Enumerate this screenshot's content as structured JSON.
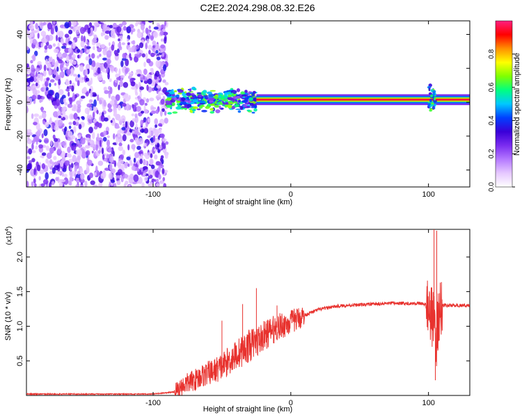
{
  "figure_title": "C2E2.2024.298.08.32.E26",
  "chart_data": [
    {
      "id": "spectrogram",
      "type": "heatmap",
      "xlabel": "Height of straight line (km)",
      "ylabel": "Frequency (Hz)",
      "xlim": [
        -192,
        130
      ],
      "ylim": [
        -50,
        48
      ],
      "x_ticks": [
        -100,
        0,
        100
      ],
      "y_ticks": [
        -40,
        -20,
        0,
        20,
        40
      ],
      "colorbar": {
        "label": "Normalized spectral amplitude",
        "range": [
          0,
          1
        ],
        "ticks": [
          "0.0",
          "0.2",
          "0.4",
          "0.6",
          "0.8"
        ],
        "colors": [
          "#ffffff",
          "#e6c8ff",
          "#b478ff",
          "#7a2cf0",
          "#3a00d8",
          "#0040ff",
          "#00c8ff",
          "#00ff80",
          "#80ff00",
          "#ffff00",
          "#ff9000",
          "#ff0000",
          "#ff2080"
        ]
      },
      "regions": [
        {
          "name": "noise",
          "x_range": [
            -192,
            -90
          ],
          "freq_range": [
            -50,
            48
          ],
          "amplitude": "low, scattered"
        },
        {
          "name": "transition",
          "x_range": [
            -90,
            -25
          ],
          "center_freq": 1,
          "freq_spread": 6,
          "amplitude": 0.45
        },
        {
          "name": "carrier",
          "x_range": [
            -25,
            130
          ],
          "center_freq": 1.5,
          "freq_spread": 3,
          "amplitude": 0.95
        },
        {
          "name": "disturbance",
          "x_range": [
            100,
            105
          ],
          "freq_range": [
            -5,
            10
          ],
          "amplitude": 0.5
        }
      ]
    },
    {
      "id": "snr",
      "type": "line",
      "xlabel": "Height of straight line (km)",
      "ylabel": "SNR (10 * v/v)",
      "y_scale_label": "(x10",
      "y_scale_exp": "4",
      "xlim": [
        -192,
        130
      ],
      "ylim": [
        0,
        2.4
      ],
      "x_ticks": [
        -100,
        0,
        100
      ],
      "y_ticks": [
        "0.5",
        "1.0",
        "1.5",
        "2.0"
      ],
      "line_color": "#e8322e",
      "series": [
        {
          "name": "SNR",
          "x": [
            -192,
            -160,
            -130,
            -100,
            -85,
            -80,
            -75,
            -70,
            -65,
            -60,
            -55,
            -50,
            -45,
            -40,
            -35,
            -30,
            -25,
            -20,
            -15,
            -10,
            -5,
            0,
            10,
            20,
            30,
            40,
            50,
            60,
            70,
            80,
            90,
            95,
            100,
            102,
            104,
            106,
            108,
            110,
            120,
            130
          ],
          "y": [
            0.02,
            0.02,
            0.02,
            0.02,
            0.05,
            0.12,
            0.18,
            0.22,
            0.28,
            0.32,
            0.36,
            0.42,
            0.5,
            0.58,
            0.65,
            0.72,
            0.78,
            0.85,
            0.92,
            0.98,
            1.02,
            1.06,
            1.16,
            1.24,
            1.28,
            1.3,
            1.31,
            1.32,
            1.33,
            1.33,
            1.33,
            1.33,
            1.3,
            1.2,
            1.0,
            0.8,
            1.25,
            1.3,
            1.3,
            1.3
          ]
        }
      ],
      "spikes": [
        {
          "x": -50,
          "y": 1.08
        },
        {
          "x": -35,
          "y": 1.32
        },
        {
          "x": -25,
          "y": 1.55
        },
        {
          "x": -10,
          "y": 1.3
        },
        {
          "x": 104,
          "y": 2.4
        },
        {
          "x": 106,
          "y": 2.38
        },
        {
          "x": 105,
          "y": 0.22
        }
      ]
    }
  ]
}
